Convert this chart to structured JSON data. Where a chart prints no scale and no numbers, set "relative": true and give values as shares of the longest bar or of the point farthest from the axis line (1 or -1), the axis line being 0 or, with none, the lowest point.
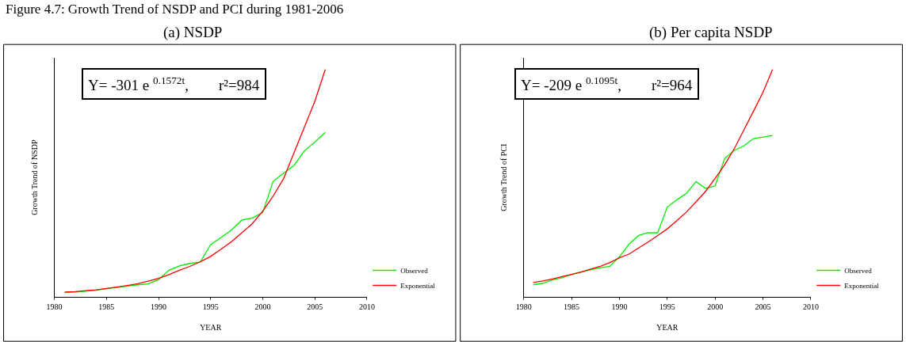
{
  "chart_data": [
    {
      "type": "line",
      "title": "(a) NSDP",
      "xlabel": "YEAR",
      "ylabel": "Growth Trend of NSDP",
      "relative": true,
      "legend": "bottom right",
      "annotations": [
        "Figure 4.7: Growth Trend of NSDP and PCI during 1981-2006",
        "Y= -301 e $^{0.1572t}$,        r²=984"
      ],
      "x": [
        1981,
        1982,
        1983,
        1984,
        1985,
        1986,
        1987,
        1988,
        1989,
        1990,
        1991,
        1992,
        1993,
        1994,
        1995,
        1996,
        1997,
        1998,
        1999,
        2000,
        2001,
        2002,
        2003,
        2004,
        2005,
        2006
      ],
      "xlim": [
        1980,
        2010
      ],
      "xticks": [
        1980,
        1985,
        1990,
        1995,
        2000,
        2005,
        2010
      ],
      "series": [
        {
          "name": "Observed",
          "color": "#00ee00",
          "values": [
            0.019,
            0.021,
            0.025,
            0.029,
            0.036,
            0.041,
            0.047,
            0.053,
            0.057,
            0.076,
            0.117,
            0.136,
            0.147,
            0.153,
            0.23,
            0.261,
            0.294,
            0.338,
            0.347,
            0.371,
            0.508,
            0.544,
            0.578,
            0.642,
            0.681,
            0.723
          ]
        },
        {
          "name": "Exponential",
          "color": "#ff0000",
          "values": [
            0.021,
            0.023,
            0.027,
            0.031,
            0.037,
            0.043,
            0.05,
            0.058,
            0.069,
            0.081,
            0.098,
            0.117,
            0.134,
            0.154,
            0.178,
            0.21,
            0.243,
            0.282,
            0.322,
            0.377,
            0.443,
            0.52,
            0.634,
            0.747,
            0.86,
            1.0
          ]
        }
      ]
    },
    {
      "type": "line",
      "title": "(b) Per capita NSDP",
      "xlabel": "YEAR",
      "ylabel": "Growth Trend of PCI",
      "relative": true,
      "legend": "bottom right",
      "annotations": [
        "Y= -209 e $^{0.1095t}$,        r²=964"
      ],
      "x": [
        1981,
        1982,
        1983,
        1984,
        1985,
        1986,
        1987,
        1988,
        1989,
        1990,
        1991,
        1992,
        1993,
        1994,
        1995,
        1996,
        1997,
        1998,
        1999,
        2000,
        2001,
        2002,
        2003,
        2004,
        2005,
        2006
      ],
      "xlim": [
        1980,
        2010
      ],
      "xticks": [
        1980,
        1985,
        1990,
        1995,
        2000,
        2005,
        2010
      ],
      "series": [
        {
          "name": "Observed",
          "color": "#00ee00",
          "values": [
            0.053,
            0.06,
            0.074,
            0.084,
            0.099,
            0.109,
            0.119,
            0.128,
            0.134,
            0.176,
            0.232,
            0.27,
            0.282,
            0.282,
            0.395,
            0.427,
            0.455,
            0.507,
            0.477,
            0.488,
            0.609,
            0.644,
            0.664,
            0.696,
            0.703,
            0.71
          ]
        },
        {
          "name": "Exponential",
          "color": "#ff0000",
          "values": [
            0.063,
            0.07,
            0.079,
            0.089,
            0.099,
            0.109,
            0.122,
            0.134,
            0.151,
            0.172,
            0.188,
            0.215,
            0.241,
            0.27,
            0.299,
            0.335,
            0.373,
            0.418,
            0.464,
            0.521,
            0.581,
            0.652,
            0.734,
            0.816,
            0.9,
            1.0
          ]
        }
      ]
    }
  ]
}
